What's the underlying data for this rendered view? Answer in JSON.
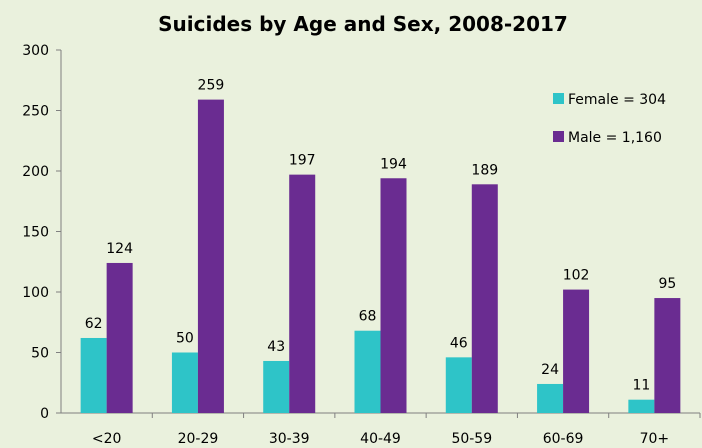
{
  "chart_data": {
    "type": "bar",
    "title": "Suicides by Age and Sex, 2008-2017",
    "xlabel": "",
    "ylabel": "",
    "categories": [
      "<20",
      "20-29",
      "30-39",
      "40-49",
      "50-59",
      "60-69",
      "70+"
    ],
    "series": [
      {
        "name": "Female = 304",
        "values": [
          62,
          50,
          43,
          68,
          46,
          24,
          11
        ],
        "color": "#2ec4c8"
      },
      {
        "name": "Male = 1,160",
        "values": [
          124,
          259,
          197,
          194,
          189,
          102,
          95
        ],
        "color": "#6a2c91"
      }
    ],
    "ylim": [
      0,
      300
    ],
    "yticks": [
      0,
      50,
      100,
      150,
      200,
      250,
      300
    ],
    "grid": false,
    "legend_position": "top-right",
    "background_color": "#eaf1dd"
  }
}
